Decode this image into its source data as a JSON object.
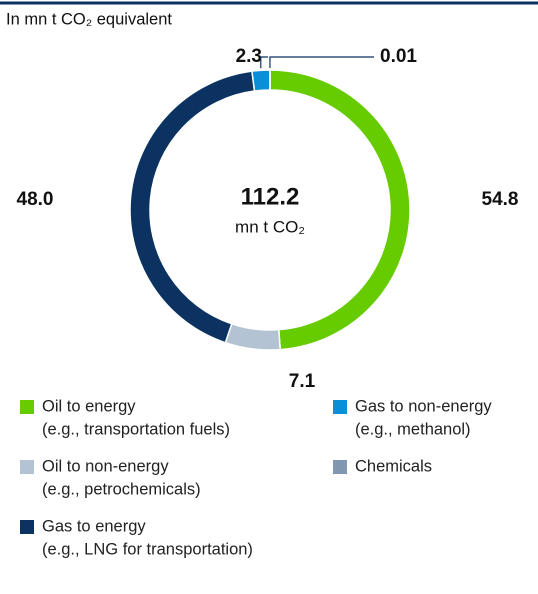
{
  "chart_data": {
    "type": "donut",
    "title": "In mn t CO₂ equivalent",
    "total": "112.2",
    "total_unit": "mn t CO₂",
    "series": [
      {
        "name": "Oil to energy",
        "detail": "(e.g., transportation fuels)",
        "color": "#66cc00",
        "values": [
          54.8
        ]
      },
      {
        "name": "Oil to non-energy",
        "detail": "(e.g., petrochemicals)",
        "color": "#b3c3d3",
        "values": [
          7.1
        ]
      },
      {
        "name": "Gas to energy",
        "detail": "(e.g., LNG for transportation)",
        "color": "#0b3261",
        "values": [
          48.0
        ]
      },
      {
        "name": "Gas to non-energy",
        "detail": "(e.g., methanol)",
        "color": "#0a8fd6",
        "values": [
          2.3
        ]
      },
      {
        "name": "Chemicals",
        "color": "#7f97b0",
        "values": [
          0.01
        ]
      }
    ],
    "value_labels": [
      "54.8",
      "7.1",
      "48.0",
      "2.3",
      "0.01"
    ]
  }
}
